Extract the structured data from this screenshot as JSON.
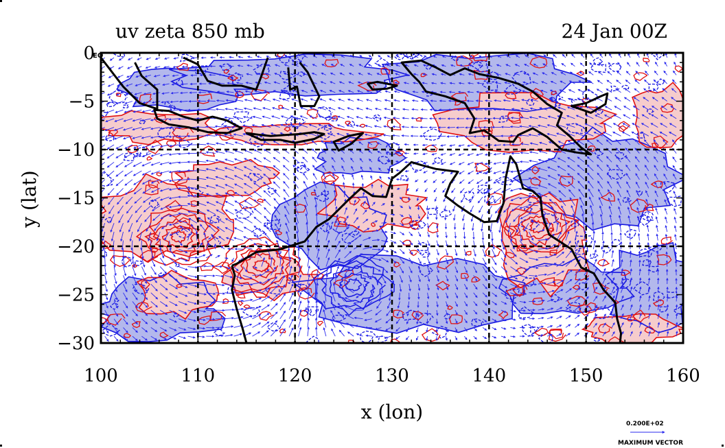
{
  "chart_data": {
    "type": "contour",
    "title": "uv zeta 850 mb",
    "subtitle": "24 Jan 00Z",
    "xlabel": "x (lon)",
    "ylabel": "y (lat)",
    "xlim": [
      100,
      160
    ],
    "ylim": [
      -30,
      0
    ],
    "xticks": [
      "100",
      "110",
      "120",
      "130",
      "140",
      "150",
      "160"
    ],
    "yticks": [
      "0",
      "−5",
      "−10",
      "−15",
      "−20",
      "−25",
      "−30"
    ],
    "grid_lon": [
      110,
      120,
      130,
      140,
      150
    ],
    "grid_lat": [
      -10,
      -20
    ],
    "equator_label": "EQ",
    "colors": {
      "positive_fill": "#f6cccc",
      "negative_fill": "#b3b8ec",
      "positive_contour": "#e01010",
      "negative_contour": "#1818e0",
      "vectors": "#2a2aee",
      "coastline": "#000000"
    },
    "reference_vector": {
      "value": "0.200E+02",
      "label": "MAXIMUM VECTOR"
    },
    "cyclone_centers": [
      {
        "lon": 145.0,
        "lat": -18.0,
        "sign": "positive"
      },
      {
        "lon": 116.5,
        "lat": -22.0,
        "sign": "positive"
      },
      {
        "lon": 108.0,
        "lat": -19.0,
        "sign": "positive"
      },
      {
        "lon": 126.0,
        "lat": -24.0,
        "sign": "negative"
      }
    ]
  }
}
